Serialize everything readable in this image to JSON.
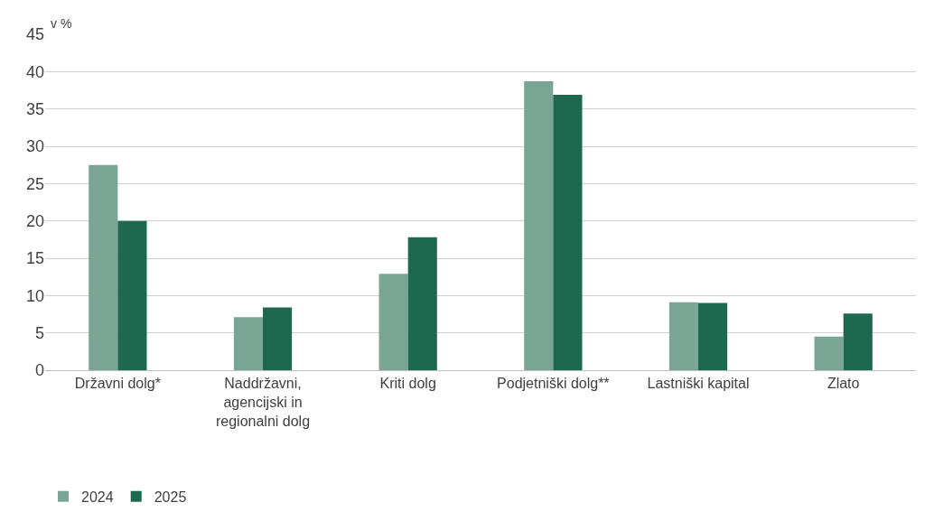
{
  "chart_data": {
    "type": "bar",
    "ylabel": "v %",
    "categories": [
      "Državni dolg*",
      "Naddržavni,\nagencijski in\nregionalni dolg",
      "Kriti dolg",
      "Podjetniški dolg**",
      "Lastniški kapital",
      "Zlato"
    ],
    "series": [
      {
        "name": "2024",
        "color": "#7aa595",
        "values": [
          27.5,
          7.1,
          12.9,
          38.7,
          9.1,
          4.5
        ]
      },
      {
        "name": "2025",
        "color": "#1e6850",
        "values": [
          20.0,
          8.4,
          17.8,
          36.9,
          9.0,
          7.6
        ]
      }
    ],
    "ylim": [
      0,
      45
    ],
    "yticks": [
      0,
      5,
      10,
      15,
      20,
      25,
      30,
      35,
      40,
      45
    ],
    "grid": "y",
    "legend": "bottom left"
  }
}
